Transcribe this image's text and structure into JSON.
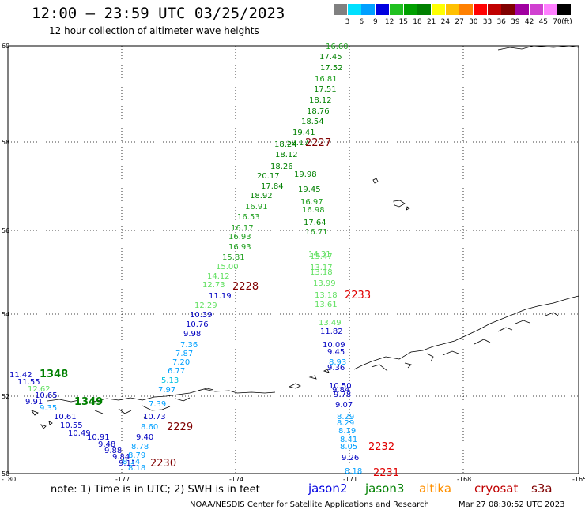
{
  "header": {
    "title": "12:00 — 23:59 UTC 03/25/2023",
    "subtitle": "12 hour collection of altimeter wave heights"
  },
  "legend": {
    "colors": [
      "#808080",
      "#00e0ff",
      "#00a0ff",
      "#0000e0",
      "#20c020",
      "#00a000",
      "#008000",
      "#ffff00",
      "#ffc000",
      "#ff8000",
      "#ff0000",
      "#c00000",
      "#800000",
      "#a000a0",
      "#d040d0",
      "#ff80ff",
      "#000000"
    ],
    "labels": [
      "3",
      "6",
      "9",
      "12",
      "15",
      "18",
      "21",
      "24",
      "27",
      "30",
      "33",
      "36",
      "39",
      "42",
      "45",
      "70"
    ],
    "unit": "(ft)"
  },
  "axes": {
    "lat_labels": [
      "60",
      "58",
      "56",
      "54",
      "52",
      "50"
    ],
    "lon_labels": [
      "-180",
      "-177",
      "-174",
      "-171",
      "-168",
      "-165"
    ]
  },
  "observations": [
    {
      "v": "16.60",
      "c": "#20a020"
    },
    {
      "v": "17.45",
      "c": "#008000"
    },
    {
      "v": "17.52",
      "c": "#008000"
    },
    {
      "v": "16.81",
      "c": "#20a020"
    },
    {
      "v": "17.51",
      "c": "#008000"
    },
    {
      "v": "18.12",
      "c": "#008000"
    },
    {
      "v": "18.76",
      "c": "#008000"
    },
    {
      "v": "18.54",
      "c": "#008000"
    },
    {
      "v": "19.41",
      "c": "#008000"
    },
    {
      "v": "19.17",
      "c": "#008000"
    },
    {
      "v": "18.24",
      "c": "#008000"
    },
    {
      "v": "18.12",
      "c": "#008000"
    },
    {
      "v": "18.26",
      "c": "#008000"
    },
    {
      "v": "20.17",
      "c": "#008000"
    },
    {
      "v": "17.84",
      "c": "#008000"
    },
    {
      "v": "18.92",
      "c": "#008000"
    },
    {
      "v": "16.91",
      "c": "#20a020"
    },
    {
      "v": "16.53",
      "c": "#20a020"
    },
    {
      "v": "16.17",
      "c": "#20a020"
    },
    {
      "v": "16.93",
      "c": "#20a020"
    },
    {
      "v": "16.93",
      "c": "#20a020"
    },
    {
      "v": "15.81",
      "c": "#20a020"
    },
    {
      "v": "15.00",
      "c": "#60e060"
    },
    {
      "v": "14.12",
      "c": "#60e060"
    },
    {
      "v": "12.73",
      "c": "#60e060"
    },
    {
      "v": "11.19",
      "c": "#0000c0"
    },
    {
      "v": "12.29",
      "c": "#60e060"
    },
    {
      "v": "10.39",
      "c": "#0000c0"
    },
    {
      "v": "10.76",
      "c": "#0000c0"
    },
    {
      "v": "9.98",
      "c": "#0000c0"
    },
    {
      "v": "7.36",
      "c": "#00a0ff"
    },
    {
      "v": "7.87",
      "c": "#00a0ff"
    },
    {
      "v": "7.20",
      "c": "#00a0ff"
    },
    {
      "v": "6.77",
      "c": "#00a0ff"
    },
    {
      "v": "5.13",
      "c": "#00c0e0"
    },
    {
      "v": "7.97",
      "c": "#00a0ff"
    },
    {
      "v": "7.39",
      "c": "#00a0ff"
    },
    {
      "v": "10.73",
      "c": "#0000c0"
    },
    {
      "v": "8.60",
      "c": "#00a0ff"
    },
    {
      "v": "9.40",
      "c": "#0000c0"
    },
    {
      "v": "8.78",
      "c": "#00a0ff"
    },
    {
      "v": "8.79",
      "c": "#00a0ff"
    },
    {
      "v": "8.14",
      "c": "#00a0ff"
    },
    {
      "v": "8.18",
      "c": "#00a0ff"
    },
    {
      "v": "11.42",
      "c": "#0000c0"
    },
    {
      "v": "11.55",
      "c": "#0000c0"
    },
    {
      "v": "12.62",
      "c": "#60e060"
    },
    {
      "v": "10.65",
      "c": "#0000c0"
    },
    {
      "v": "9.91",
      "c": "#0000c0"
    },
    {
      "v": "9.35",
      "c": "#00a0ff"
    },
    {
      "v": "10.61",
      "c": "#0000c0"
    },
    {
      "v": "10.55",
      "c": "#0000c0"
    },
    {
      "v": "10.49",
      "c": "#0000c0"
    },
    {
      "v": "10.91",
      "c": "#0000c0"
    },
    {
      "v": "9.48",
      "c": "#0000c0"
    },
    {
      "v": "9.88",
      "c": "#0000c0"
    },
    {
      "v": "9.84",
      "c": "#0000c0"
    },
    {
      "v": "9.11",
      "c": "#0000c0"
    },
    {
      "v": "19.98",
      "c": "#008000"
    },
    {
      "v": "19.45",
      "c": "#008000"
    },
    {
      "v": "16.97",
      "c": "#20a020"
    },
    {
      "v": "16.98",
      "c": "#20a020"
    },
    {
      "v": "17.64",
      "c": "#008000"
    },
    {
      "v": "16.71",
      "c": "#20a020"
    },
    {
      "v": "14.31",
      "c": "#60e060"
    },
    {
      "v": "13.47",
      "c": "#60e060"
    },
    {
      "v": "13.17",
      "c": "#60e060"
    },
    {
      "v": "13.18",
      "c": "#60e060"
    },
    {
      "v": "13.99",
      "c": "#60e060"
    },
    {
      "v": "13.18",
      "c": "#60e060"
    },
    {
      "v": "13.61",
      "c": "#60e060"
    },
    {
      "v": "13.49",
      "c": "#60e060"
    },
    {
      "v": "11.82",
      "c": "#0000c0"
    },
    {
      "v": "10.09",
      "c": "#0000c0"
    },
    {
      "v": "9.45",
      "c": "#0000c0"
    },
    {
      "v": "8.93",
      "c": "#00a0ff"
    },
    {
      "v": "9.36",
      "c": "#0000c0"
    },
    {
      "v": "10.50",
      "c": "#0000c0"
    },
    {
      "v": "9.84",
      "c": "#0000c0"
    },
    {
      "v": "9.78",
      "c": "#0000c0"
    },
    {
      "v": "9.07",
      "c": "#0000c0"
    },
    {
      "v": "8.29",
      "c": "#00a0ff"
    },
    {
      "v": "8.29",
      "c": "#00a0ff"
    },
    {
      "v": "8.19",
      "c": "#00a0ff"
    },
    {
      "v": "8.41",
      "c": "#00a0ff"
    },
    {
      "v": "8.05",
      "c": "#00a0ff"
    },
    {
      "v": "9.26",
      "c": "#0000c0"
    },
    {
      "v": "8.18",
      "c": "#00a0ff"
    }
  ],
  "time_labels": [
    {
      "t": "2227",
      "c": "#800000"
    },
    {
      "t": "2228",
      "c": "#800000"
    },
    {
      "t": "2229",
      "c": "#800000"
    },
    {
      "t": "2230",
      "c": "#800000"
    },
    {
      "t": "2233",
      "c": "#e00000"
    },
    {
      "t": "2232",
      "c": "#e00000"
    },
    {
      "t": "2231",
      "c": "#e00000"
    },
    {
      "t": "1348",
      "c": "#008000"
    },
    {
      "t": "1349",
      "c": "#008000"
    }
  ],
  "note": "note:  1) Time is in UTC;  2) SWH is in feet",
  "satellites": [
    {
      "name": "jason2",
      "color": "#0000e0"
    },
    {
      "name": "jason3",
      "color": "#008000"
    },
    {
      "name": "altika",
      "color": "#ff9000"
    },
    {
      "name": "cryosat",
      "color": "#c00000"
    },
    {
      "name": "s3a",
      "color": "#800000"
    }
  ],
  "footer": {
    "left": "NOAA/NESDIS Center for Satellite Applications and Research",
    "right": "Mar 27 08:30:52 UTC 2023"
  }
}
